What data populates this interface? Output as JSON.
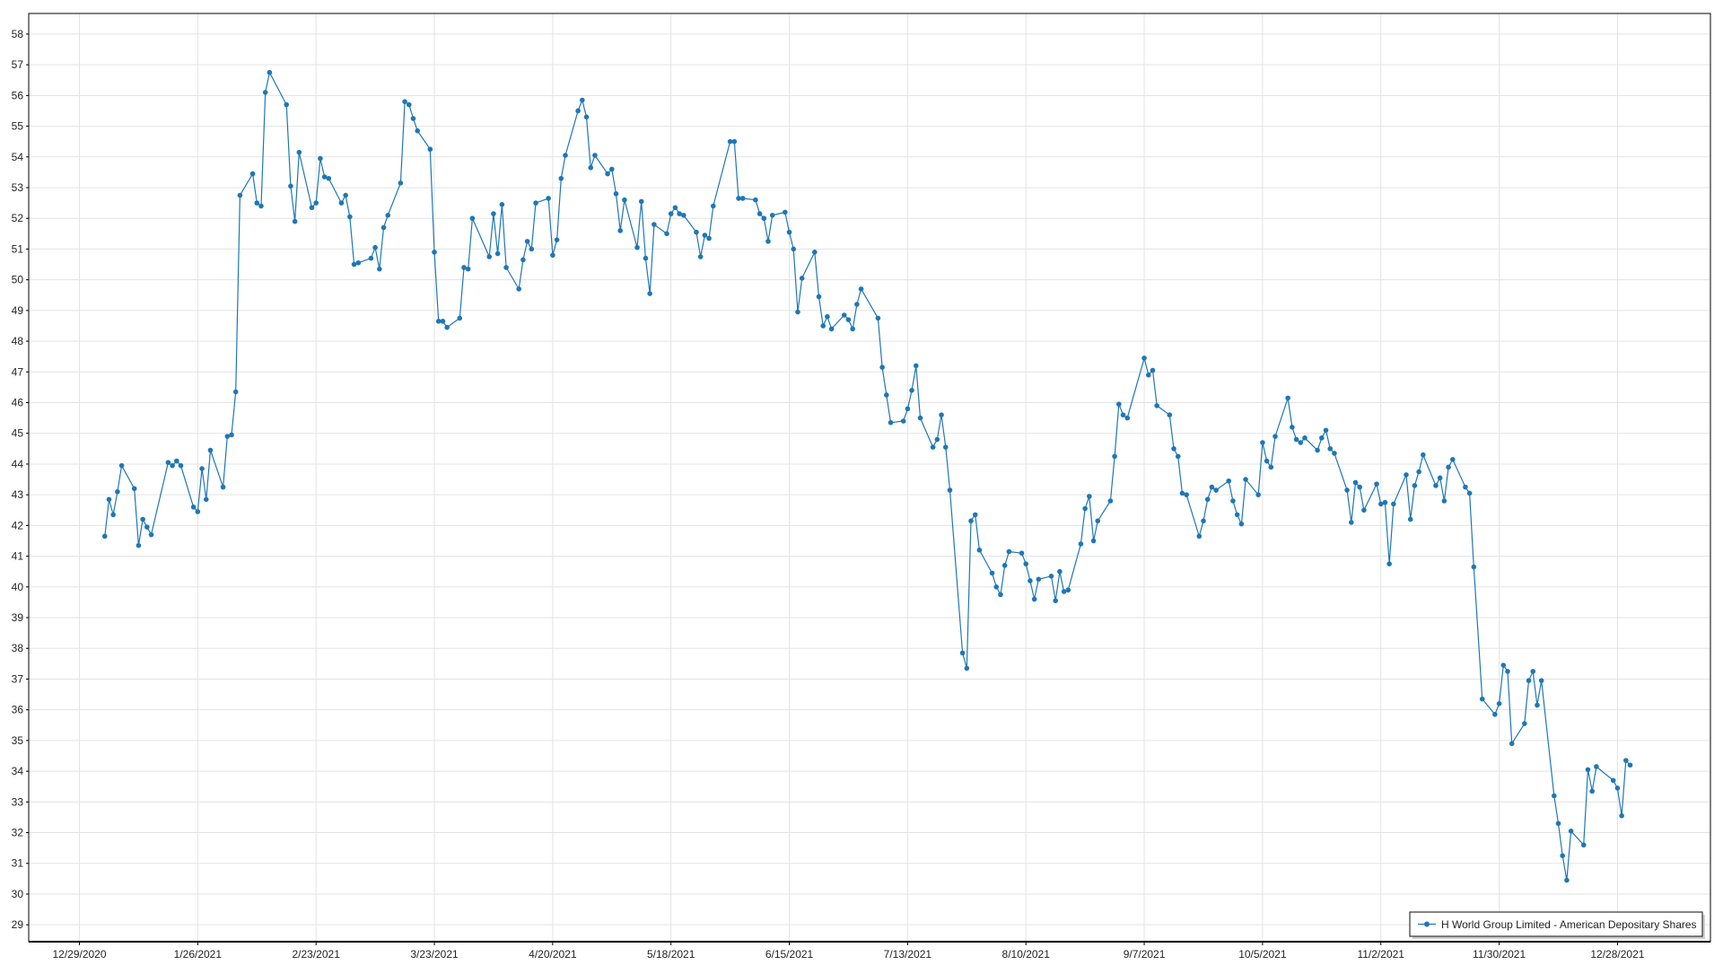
{
  "chart_data": {
    "type": "line",
    "title": "",
    "xlabel": "",
    "ylabel": "",
    "xlim": [
      "2020-12-17",
      "2022-01-19"
    ],
    "ylim": [
      28.45,
      58.67
    ],
    "grid": true,
    "legend_position": "bottom-right",
    "x_ticks": [
      "12/29/2020",
      "1/26/2021",
      "2/23/2021",
      "3/23/2021",
      "4/20/2021",
      "5/18/2021",
      "6/15/2021",
      "7/13/2021",
      "8/10/2021",
      "9/7/2021",
      "10/5/2021",
      "11/2/2021",
      "11/30/2021",
      "12/28/2021"
    ],
    "x_tick_dates": [
      "2020-12-29",
      "2021-01-26",
      "2021-02-23",
      "2021-03-23",
      "2021-04-20",
      "2021-05-18",
      "2021-06-15",
      "2021-07-13",
      "2021-08-10",
      "2021-09-07",
      "2021-10-05",
      "2021-11-02",
      "2021-11-30",
      "2021-12-28"
    ],
    "y_ticks": [
      29,
      30,
      31,
      32,
      33,
      34,
      35,
      36,
      37,
      38,
      39,
      40,
      41,
      42,
      43,
      44,
      45,
      46,
      47,
      48,
      49,
      50,
      51,
      52,
      53,
      54,
      55,
      56,
      57,
      58
    ],
    "colors": {
      "series": "#1f77b4",
      "grid": "#e3e3e3",
      "axis": "#000000"
    },
    "series": [
      {
        "name": "H World Group Limited - American Depositary Shares",
        "marker": "circle",
        "points": [
          [
            "2021-01-04",
            41.65
          ],
          [
            "2021-01-05",
            42.85
          ],
          [
            "2021-01-06",
            42.35
          ],
          [
            "2021-01-07",
            43.1
          ],
          [
            "2021-01-08",
            43.95
          ],
          [
            "2021-01-11",
            43.2
          ],
          [
            "2021-01-12",
            41.35
          ],
          [
            "2021-01-13",
            42.2
          ],
          [
            "2021-01-14",
            41.95
          ],
          [
            "2021-01-15",
            41.7
          ],
          [
            "2021-01-19",
            44.05
          ],
          [
            "2021-01-20",
            43.95
          ],
          [
            "2021-01-21",
            44.1
          ],
          [
            "2021-01-22",
            43.95
          ],
          [
            "2021-01-25",
            42.6
          ],
          [
            "2021-01-26",
            42.45
          ],
          [
            "2021-01-27",
            43.85
          ],
          [
            "2021-01-28",
            42.85
          ],
          [
            "2021-01-29",
            44.45
          ],
          [
            "2021-02-01",
            43.25
          ],
          [
            "2021-02-02",
            44.9
          ],
          [
            "2021-02-03",
            44.95
          ],
          [
            "2021-02-04",
            46.35
          ],
          [
            "2021-02-05",
            52.75
          ],
          [
            "2021-02-08",
            53.45
          ],
          [
            "2021-02-09",
            52.5
          ],
          [
            "2021-02-10",
            52.4
          ],
          [
            "2021-02-11",
            56.1
          ],
          [
            "2021-02-12",
            56.75
          ],
          [
            "2021-02-16",
            55.7
          ],
          [
            "2021-02-17",
            53.05
          ],
          [
            "2021-02-18",
            51.9
          ],
          [
            "2021-02-19",
            54.15
          ],
          [
            "2021-02-22",
            52.35
          ],
          [
            "2021-02-23",
            52.5
          ],
          [
            "2021-02-24",
            53.95
          ],
          [
            "2021-02-25",
            53.35
          ],
          [
            "2021-02-26",
            53.3
          ],
          [
            "2021-03-01",
            52.5
          ],
          [
            "2021-03-02",
            52.75
          ],
          [
            "2021-03-03",
            52.05
          ],
          [
            "2021-03-04",
            50.5
          ],
          [
            "2021-03-05",
            50.55
          ],
          [
            "2021-03-08",
            50.7
          ],
          [
            "2021-03-09",
            51.05
          ],
          [
            "2021-03-10",
            50.35
          ],
          [
            "2021-03-11",
            51.7
          ],
          [
            "2021-03-12",
            52.1
          ],
          [
            "2021-03-15",
            53.15
          ],
          [
            "2021-03-16",
            55.8
          ],
          [
            "2021-03-17",
            55.7
          ],
          [
            "2021-03-18",
            55.25
          ],
          [
            "2021-03-19",
            54.85
          ],
          [
            "2021-03-22",
            54.25
          ],
          [
            "2021-03-23",
            50.9
          ],
          [
            "2021-03-24",
            48.65
          ],
          [
            "2021-03-25",
            48.65
          ],
          [
            "2021-03-26",
            48.45
          ],
          [
            "2021-03-29",
            48.75
          ],
          [
            "2021-03-30",
            50.4
          ],
          [
            "2021-03-31",
            50.35
          ],
          [
            "2021-04-01",
            52.0
          ],
          [
            "2021-04-05",
            50.75
          ],
          [
            "2021-04-06",
            52.15
          ],
          [
            "2021-04-07",
            50.85
          ],
          [
            "2021-04-08",
            52.45
          ],
          [
            "2021-04-09",
            50.4
          ],
          [
            "2021-04-12",
            49.7
          ],
          [
            "2021-04-13",
            50.65
          ],
          [
            "2021-04-14",
            51.25
          ],
          [
            "2021-04-15",
            51.0
          ],
          [
            "2021-04-16",
            52.5
          ],
          [
            "2021-04-19",
            52.65
          ],
          [
            "2021-04-20",
            50.8
          ],
          [
            "2021-04-21",
            51.3
          ],
          [
            "2021-04-22",
            53.3
          ],
          [
            "2021-04-23",
            54.05
          ],
          [
            "2021-04-26",
            55.5
          ],
          [
            "2021-04-27",
            55.85
          ],
          [
            "2021-04-28",
            55.3
          ],
          [
            "2021-04-29",
            53.65
          ],
          [
            "2021-04-30",
            54.05
          ],
          [
            "2021-05-03",
            53.45
          ],
          [
            "2021-05-04",
            53.6
          ],
          [
            "2021-05-05",
            52.8
          ],
          [
            "2021-05-06",
            51.6
          ],
          [
            "2021-05-07",
            52.6
          ],
          [
            "2021-05-10",
            51.05
          ],
          [
            "2021-05-11",
            52.55
          ],
          [
            "2021-05-12",
            50.7
          ],
          [
            "2021-05-13",
            49.55
          ],
          [
            "2021-05-14",
            51.8
          ],
          [
            "2021-05-17",
            51.5
          ],
          [
            "2021-05-18",
            52.15
          ],
          [
            "2021-05-19",
            52.35
          ],
          [
            "2021-05-20",
            52.15
          ],
          [
            "2021-05-21",
            52.1
          ],
          [
            "2021-05-24",
            51.55
          ],
          [
            "2021-05-25",
            50.75
          ],
          [
            "2021-05-26",
            51.45
          ],
          [
            "2021-05-27",
            51.35
          ],
          [
            "2021-05-28",
            52.4
          ],
          [
            "2021-06-01",
            54.5
          ],
          [
            "2021-06-02",
            54.5
          ],
          [
            "2021-06-03",
            52.65
          ],
          [
            "2021-06-04",
            52.65
          ],
          [
            "2021-06-07",
            52.6
          ],
          [
            "2021-06-08",
            52.15
          ],
          [
            "2021-06-09",
            52.0
          ],
          [
            "2021-06-10",
            51.25
          ],
          [
            "2021-06-11",
            52.1
          ],
          [
            "2021-06-14",
            52.2
          ],
          [
            "2021-06-15",
            51.55
          ],
          [
            "2021-06-16",
            51.0
          ],
          [
            "2021-06-17",
            48.95
          ],
          [
            "2021-06-18",
            50.05
          ],
          [
            "2021-06-21",
            50.9
          ],
          [
            "2021-06-22",
            49.45
          ],
          [
            "2021-06-23",
            48.5
          ],
          [
            "2021-06-24",
            48.8
          ],
          [
            "2021-06-25",
            48.4
          ],
          [
            "2021-06-28",
            48.85
          ],
          [
            "2021-06-29",
            48.7
          ],
          [
            "2021-06-30",
            48.4
          ],
          [
            "2021-07-01",
            49.2
          ],
          [
            "2021-07-02",
            49.7
          ],
          [
            "2021-07-06",
            48.75
          ],
          [
            "2021-07-07",
            47.15
          ],
          [
            "2021-07-08",
            46.25
          ],
          [
            "2021-07-09",
            45.35
          ],
          [
            "2021-07-12",
            45.4
          ],
          [
            "2021-07-13",
            45.8
          ],
          [
            "2021-07-14",
            46.4
          ],
          [
            "2021-07-15",
            47.2
          ],
          [
            "2021-07-16",
            45.5
          ],
          [
            "2021-07-19",
            44.55
          ],
          [
            "2021-07-20",
            44.8
          ],
          [
            "2021-07-21",
            45.6
          ],
          [
            "2021-07-22",
            44.55
          ],
          [
            "2021-07-23",
            43.15
          ],
          [
            "2021-07-26",
            37.85
          ],
          [
            "2021-07-27",
            37.35
          ],
          [
            "2021-07-28",
            42.15
          ],
          [
            "2021-07-29",
            42.35
          ],
          [
            "2021-07-30",
            41.2
          ],
          [
            "2021-08-02",
            40.45
          ],
          [
            "2021-08-03",
            40.0
          ],
          [
            "2021-08-04",
            39.75
          ],
          [
            "2021-08-05",
            40.7
          ],
          [
            "2021-08-06",
            41.15
          ],
          [
            "2021-08-09",
            41.1
          ],
          [
            "2021-08-10",
            40.75
          ],
          [
            "2021-08-11",
            40.2
          ],
          [
            "2021-08-12",
            39.6
          ],
          [
            "2021-08-13",
            40.25
          ],
          [
            "2021-08-16",
            40.35
          ],
          [
            "2021-08-17",
            39.55
          ],
          [
            "2021-08-18",
            40.5
          ],
          [
            "2021-08-19",
            39.85
          ],
          [
            "2021-08-20",
            39.9
          ],
          [
            "2021-08-23",
            41.4
          ],
          [
            "2021-08-24",
            42.55
          ],
          [
            "2021-08-25",
            42.95
          ],
          [
            "2021-08-26",
            41.5
          ],
          [
            "2021-08-27",
            42.15
          ],
          [
            "2021-08-30",
            42.8
          ],
          [
            "2021-08-31",
            44.25
          ],
          [
            "2021-09-01",
            45.95
          ],
          [
            "2021-09-02",
            45.6
          ],
          [
            "2021-09-03",
            45.5
          ],
          [
            "2021-09-07",
            47.45
          ],
          [
            "2021-09-08",
            46.9
          ],
          [
            "2021-09-09",
            47.05
          ],
          [
            "2021-09-10",
            45.9
          ],
          [
            "2021-09-13",
            45.6
          ],
          [
            "2021-09-14",
            44.5
          ],
          [
            "2021-09-15",
            44.25
          ],
          [
            "2021-09-16",
            43.05
          ],
          [
            "2021-09-17",
            43.0
          ],
          [
            "2021-09-20",
            41.65
          ],
          [
            "2021-09-21",
            42.15
          ],
          [
            "2021-09-22",
            42.85
          ],
          [
            "2021-09-23",
            43.25
          ],
          [
            "2021-09-24",
            43.15
          ],
          [
            "2021-09-27",
            43.45
          ],
          [
            "2021-09-28",
            42.8
          ],
          [
            "2021-09-29",
            42.35
          ],
          [
            "2021-09-30",
            42.05
          ],
          [
            "2021-10-01",
            43.5
          ],
          [
            "2021-10-04",
            43.0
          ],
          [
            "2021-10-05",
            44.7
          ],
          [
            "2021-10-06",
            44.1
          ],
          [
            "2021-10-07",
            43.9
          ],
          [
            "2021-10-08",
            44.9
          ],
          [
            "2021-10-11",
            46.15
          ],
          [
            "2021-10-12",
            45.2
          ],
          [
            "2021-10-13",
            44.8
          ],
          [
            "2021-10-14",
            44.7
          ],
          [
            "2021-10-15",
            44.85
          ],
          [
            "2021-10-18",
            44.45
          ],
          [
            "2021-10-19",
            44.85
          ],
          [
            "2021-10-20",
            45.1
          ],
          [
            "2021-10-21",
            44.5
          ],
          [
            "2021-10-22",
            44.35
          ],
          [
            "2021-10-25",
            43.15
          ],
          [
            "2021-10-26",
            42.1
          ],
          [
            "2021-10-27",
            43.4
          ],
          [
            "2021-10-28",
            43.25
          ],
          [
            "2021-10-29",
            42.5
          ],
          [
            "2021-11-01",
            43.35
          ],
          [
            "2021-11-02",
            42.7
          ],
          [
            "2021-11-03",
            42.75
          ],
          [
            "2021-11-04",
            40.75
          ],
          [
            "2021-11-05",
            42.7
          ],
          [
            "2021-11-08",
            43.65
          ],
          [
            "2021-11-09",
            42.2
          ],
          [
            "2021-11-10",
            43.3
          ],
          [
            "2021-11-11",
            43.75
          ],
          [
            "2021-11-12",
            44.3
          ],
          [
            "2021-11-15",
            43.3
          ],
          [
            "2021-11-16",
            43.55
          ],
          [
            "2021-11-17",
            42.8
          ],
          [
            "2021-11-18",
            43.9
          ],
          [
            "2021-11-19",
            44.15
          ],
          [
            "2021-11-22",
            43.25
          ],
          [
            "2021-11-23",
            43.05
          ],
          [
            "2021-11-24",
            40.65
          ],
          [
            "2021-11-26",
            36.35
          ],
          [
            "2021-11-29",
            35.85
          ],
          [
            "2021-11-30",
            36.2
          ],
          [
            "2021-12-01",
            37.45
          ],
          [
            "2021-12-02",
            37.25
          ],
          [
            "2021-12-03",
            34.9
          ],
          [
            "2021-12-06",
            35.55
          ],
          [
            "2021-12-07",
            36.95
          ],
          [
            "2021-12-08",
            37.25
          ],
          [
            "2021-12-09",
            36.15
          ],
          [
            "2021-12-10",
            36.95
          ],
          [
            "2021-12-13",
            33.2
          ],
          [
            "2021-12-14",
            32.3
          ],
          [
            "2021-12-15",
            31.25
          ],
          [
            "2021-12-16",
            30.45
          ],
          [
            "2021-12-17",
            32.05
          ],
          [
            "2021-12-20",
            31.6
          ],
          [
            "2021-12-21",
            34.05
          ],
          [
            "2021-12-22",
            33.35
          ],
          [
            "2021-12-23",
            34.15
          ],
          [
            "2021-12-27",
            33.7
          ],
          [
            "2021-12-28",
            33.45
          ],
          [
            "2021-12-29",
            32.55
          ],
          [
            "2021-12-30",
            34.35
          ],
          [
            "2021-12-31",
            34.2
          ]
        ]
      }
    ]
  }
}
